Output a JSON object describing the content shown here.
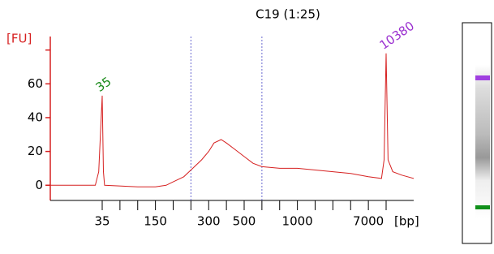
{
  "chart_data": {
    "type": "line",
    "title": "C19 (1:25)",
    "y_label": "[FU]",
    "x_unit_label": "[bp]",
    "color": "#d62020",
    "x": [
      20,
      30,
      33,
      34,
      35,
      36,
      37,
      100,
      150,
      180,
      200,
      230,
      250,
      280,
      300,
      330,
      370,
      400,
      450,
      500,
      550,
      600,
      700,
      1000,
      2000,
      3000,
      4000,
      7000,
      9500,
      10000,
      10380,
      10700,
      11500,
      13000,
      15000
    ],
    "values": [
      0,
      0,
      0,
      8,
      53,
      8,
      0,
      -1,
      -1,
      0,
      2,
      5,
      9,
      15,
      20,
      25,
      27,
      25,
      21,
      17,
      13,
      11,
      10,
      10,
      9,
      8,
      7,
      5,
      4,
      15,
      78,
      15,
      8,
      6,
      4
    ],
    "xlim": [
      20,
      15000
    ],
    "xticks": [
      {
        "value": 35,
        "label": "35"
      },
      {
        "value": 50,
        "label": null
      },
      {
        "value": 100,
        "label": null
      },
      {
        "value": 150,
        "label": "150"
      },
      {
        "value": 200,
        "label": null
      },
      {
        "value": 250,
        "label": null
      },
      {
        "value": 300,
        "label": "300"
      },
      {
        "value": 400,
        "label": null
      },
      {
        "value": 500,
        "label": "500"
      },
      {
        "value": 600,
        "label": null
      },
      {
        "value": 700,
        "label": null
      },
      {
        "value": 1000,
        "label": "1000"
      },
      {
        "value": 2000,
        "label": null
      },
      {
        "value": 3000,
        "label": null
      },
      {
        "value": 4000,
        "label": null
      },
      {
        "value": 7000,
        "label": "7000"
      },
      {
        "value": 10380,
        "label": null
      }
    ],
    "ylim": [
      -9,
      88
    ],
    "yticks": [
      0,
      20,
      40,
      60
    ],
    "region": [
      250,
      600
    ],
    "peaks": [
      {
        "bp": 35,
        "fu": 53,
        "label": "35",
        "color": "#1a8a1a"
      },
      {
        "bp": 10380,
        "fu": 78,
        "label": "10380",
        "color": "#9b30d0"
      }
    ]
  }
}
